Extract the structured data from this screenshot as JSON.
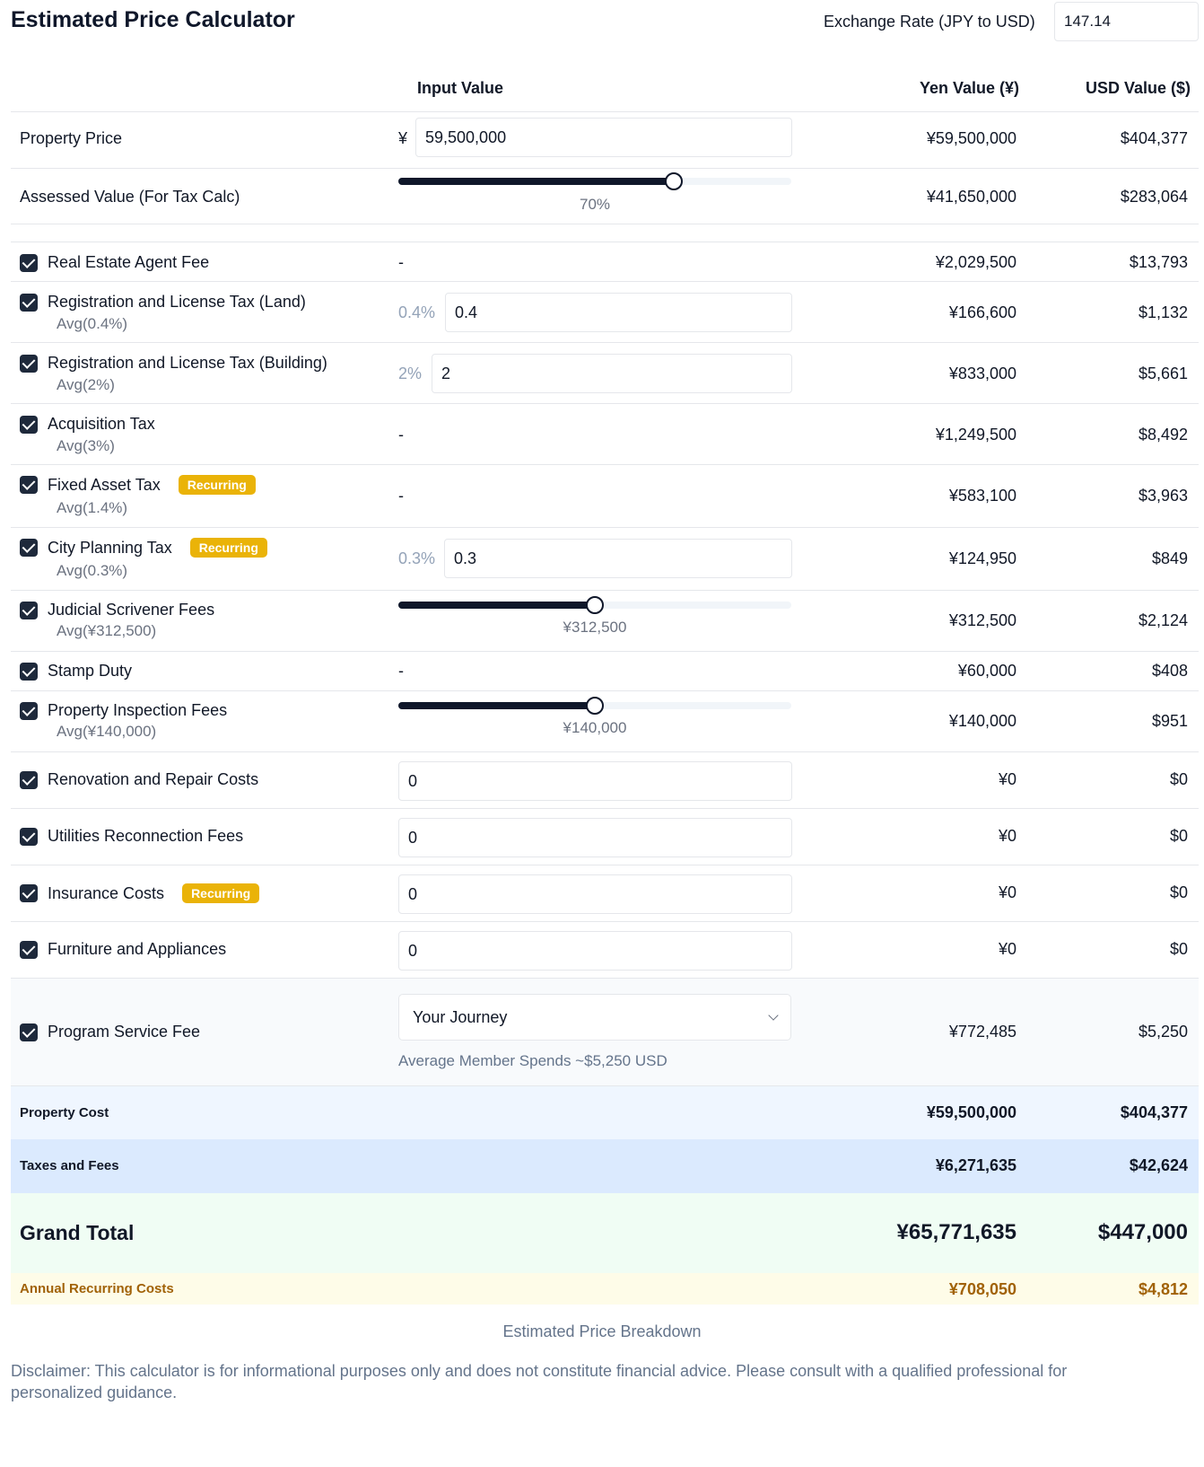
{
  "title": "Estimated Price Calculator",
  "exchange": {
    "label": "Exchange Rate (JPY to USD)",
    "value": "147.14"
  },
  "headers": {
    "input": "Input Value",
    "yen": "Yen Value (¥)",
    "usd": "USD Value ($)"
  },
  "property_price": {
    "label": "Property Price",
    "currency_symbol": "¥",
    "input": "59,500,000",
    "yen": "¥59,500,000",
    "usd": "$404,377"
  },
  "assessed": {
    "label": "Assessed Value (For Tax Calc)",
    "slider_label": "70%",
    "slider_fraction": 0.7,
    "yen": "¥41,650,000",
    "usd": "$283,064"
  },
  "fees": [
    {
      "label": "Real Estate Agent Fee",
      "input_dash": "-",
      "yen": "¥2,029,500",
      "usd": "$13,793"
    },
    {
      "label": "Registration and License Tax (Land)",
      "sub": "Avg(0.4%)",
      "pct": "0.4%",
      "input": "0.4",
      "yen": "¥166,600",
      "usd": "$1,132"
    },
    {
      "label": "Registration and License Tax (Building)",
      "sub": "Avg(2%)",
      "pct": "2%",
      "input": "2",
      "yen": "¥833,000",
      "usd": "$5,661"
    },
    {
      "label": "Acquisition Tax",
      "sub": "Avg(3%)",
      "input_dash": "-",
      "yen": "¥1,249,500",
      "usd": "$8,492"
    },
    {
      "label": "Fixed Asset Tax",
      "badge": "Recurring",
      "sub": "Avg(1.4%)",
      "input_dash": "-",
      "yen": "¥583,100",
      "usd": "$3,963"
    },
    {
      "label": "City Planning Tax",
      "badge": "Recurring",
      "sub": "Avg(0.3%)",
      "pct": "0.3%",
      "input": "0.3",
      "yen": "¥124,950",
      "usd": "$849"
    },
    {
      "label": "Judicial Scrivener Fees",
      "sub": "Avg(¥312,500)",
      "slider_label": "¥312,500",
      "slider_fraction": 0.5,
      "yen": "¥312,500",
      "usd": "$2,124"
    },
    {
      "label": "Stamp Duty",
      "input_dash": "-",
      "yen": "¥60,000",
      "usd": "$408"
    },
    {
      "label": "Property Inspection Fees",
      "sub": "Avg(¥140,000)",
      "slider_label": "¥140,000",
      "slider_fraction": 0.5,
      "yen": "¥140,000",
      "usd": "$951"
    },
    {
      "label": "Renovation and Repair Costs",
      "input": "0",
      "yen": "¥0",
      "usd": "$0"
    },
    {
      "label": "Utilities Reconnection Fees",
      "input": "0",
      "yen": "¥0",
      "usd": "$0"
    },
    {
      "label": "Insurance Costs",
      "badge": "Recurring",
      "input": "0",
      "yen": "¥0",
      "usd": "$0"
    },
    {
      "label": "Furniture and Appliances",
      "input": "0",
      "yen": "¥0",
      "usd": "$0"
    }
  ],
  "program": {
    "label": "Program Service Fee",
    "select": "Your Journey",
    "note": "Average Member Spends ~$5,250 USD",
    "yen": "¥772,485",
    "usd": "$5,250"
  },
  "summary": {
    "property_cost": {
      "label": "Property Cost",
      "yen": "¥59,500,000",
      "usd": "$404,377"
    },
    "taxes_fees": {
      "label": "Taxes and Fees",
      "yen": "¥6,271,635",
      "usd": "$42,624"
    },
    "grand_total": {
      "label": "Grand Total",
      "yen": "¥65,771,635",
      "usd": "$447,000"
    },
    "annual": {
      "label": "Annual Recurring Costs",
      "yen": "¥708,050",
      "usd": "$4,812"
    }
  },
  "breakdown": "Estimated Price Breakdown",
  "disclaimer": "Disclaimer: This calculator is for informational purposes only and does not constitute financial advice. Please consult with a qualified professional for personalized guidance.",
  "colors": {
    "checkbox": "#1e293b",
    "badge": "#eab308",
    "property_cost_bg": "#eff6ff",
    "taxes_bg": "#dbeafe",
    "grand_total_bg": "#f0fdf4",
    "annual_bg": "#fefce8",
    "annual_text": "#a16207"
  }
}
